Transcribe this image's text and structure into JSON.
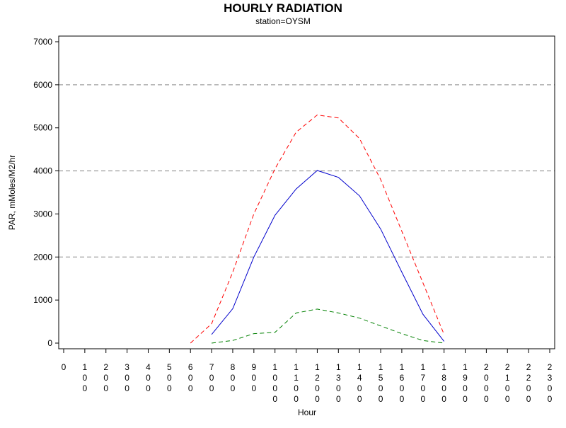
{
  "chart_data": {
    "type": "line",
    "title": "HOURLY RADIATION",
    "subtitle": "station=OYSM",
    "xlabel": "Hour",
    "ylabel": "PAR, mMoles/M2/hr",
    "xlim": [
      0,
      2300
    ],
    "ylim": [
      0,
      7000
    ],
    "x_ticks": [
      0,
      100,
      200,
      300,
      400,
      500,
      600,
      700,
      800,
      900,
      1000,
      1100,
      1200,
      1300,
      1400,
      1500,
      1600,
      1700,
      1800,
      1900,
      2000,
      2100,
      2200,
      2300
    ],
    "x_tick_labels": [
      "0",
      "100",
      "200",
      "300",
      "400",
      "500",
      "600",
      "700",
      "800",
      "900",
      "1000",
      "1100",
      "1200",
      "1300",
      "1400",
      "1500",
      "1600",
      "1700",
      "1800",
      "1900",
      "2000",
      "2100",
      "2200",
      "2300"
    ],
    "y_ticks": [
      0,
      1000,
      2000,
      3000,
      4000,
      5000,
      6000,
      7000
    ],
    "gridlines_y": [
      2000,
      4000,
      6000
    ],
    "grid": "dashed horizontal",
    "legend": "none",
    "series": [
      {
        "color": "#ff0000",
        "dash": "dashed",
        "x": [
          600,
          700,
          800,
          900,
          1000,
          1100,
          1200,
          1300,
          1400,
          1500,
          1600,
          1700,
          1800
        ],
        "values": [
          0,
          450,
          1650,
          3000,
          4050,
          4900,
          5300,
          5230,
          4750,
          3800,
          2600,
          1400,
          200
        ]
      },
      {
        "color": "#0000cc",
        "dash": "solid",
        "x": [
          700,
          800,
          900,
          1000,
          1100,
          1200,
          1300,
          1400,
          1500,
          1600,
          1700,
          1800
        ],
        "values": [
          200,
          800,
          2000,
          2970,
          3580,
          4010,
          3850,
          3420,
          2650,
          1650,
          670,
          40
        ]
      },
      {
        "color": "#008000",
        "dash": "dashed",
        "x": [
          700,
          800,
          900,
          1000,
          1100,
          1200,
          1300,
          1400,
          1500,
          1600,
          1700,
          1800
        ],
        "values": [
          0,
          60,
          220,
          250,
          700,
          790,
          700,
          580,
          400,
          220,
          60,
          0
        ]
      }
    ]
  }
}
